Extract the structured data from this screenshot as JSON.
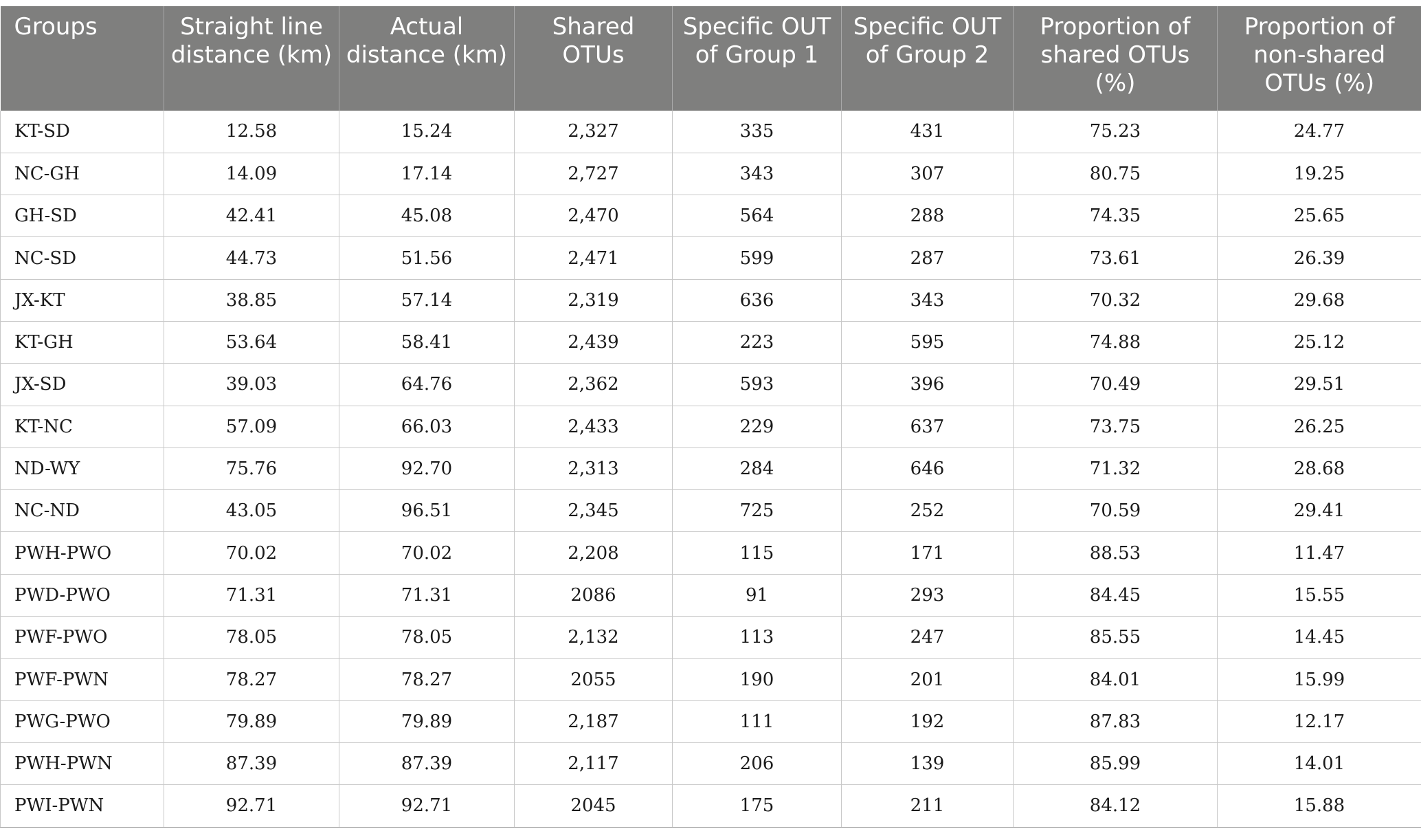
{
  "table": {
    "headers": [
      "Groups",
      "Straight line distance (km)",
      "Actual distance (km)",
      "Shared OTUs",
      "Specific OUT of Group 1",
      "Specific OUT of Group 2",
      "Proportion of shared OTUs (%)",
      "Proportion of non-shared OTUs (%)"
    ],
    "rows": [
      [
        "KT-SD",
        "12.58",
        "15.24",
        "2,327",
        "335",
        "431",
        "75.23",
        "24.77"
      ],
      [
        "NC-GH",
        "14.09",
        "17.14",
        "2,727",
        "343",
        "307",
        "80.75",
        "19.25"
      ],
      [
        "GH-SD",
        "42.41",
        "45.08",
        "2,470",
        "564",
        "288",
        "74.35",
        "25.65"
      ],
      [
        "NC-SD",
        "44.73",
        "51.56",
        "2,471",
        "599",
        "287",
        "73.61",
        "26.39"
      ],
      [
        "JX-KT",
        "38.85",
        "57.14",
        "2,319",
        "636",
        "343",
        "70.32",
        "29.68"
      ],
      [
        "KT-GH",
        "53.64",
        "58.41",
        "2,439",
        "223",
        "595",
        "74.88",
        "25.12"
      ],
      [
        "JX-SD",
        "39.03",
        "64.76",
        "2,362",
        "593",
        "396",
        "70.49",
        "29.51"
      ],
      [
        "KT-NC",
        "57.09",
        "66.03",
        "2,433",
        "229",
        "637",
        "73.75",
        "26.25"
      ],
      [
        "ND-WY",
        "75.76",
        "92.70",
        "2,313",
        "284",
        "646",
        "71.32",
        "28.68"
      ],
      [
        "NC-ND",
        "43.05",
        "96.51",
        "2,345",
        "725",
        "252",
        "70.59",
        "29.41"
      ],
      [
        "PWH-PWO",
        "70.02",
        "70.02",
        "2,208",
        "115",
        "171",
        "88.53",
        "11.47"
      ],
      [
        "PWD-PWO",
        "71.31",
        "71.31",
        "2086",
        "91",
        "293",
        "84.45",
        "15.55"
      ],
      [
        "PWF-PWO",
        "78.05",
        "78.05",
        "2,132",
        "113",
        "247",
        "85.55",
        "14.45"
      ],
      [
        "PWF-PWN",
        "78.27",
        "78.27",
        "2055",
        "190",
        "201",
        "84.01",
        "15.99"
      ],
      [
        "PWG-PWO",
        "79.89",
        "79.89",
        "2,187",
        "111",
        "192",
        "87.83",
        "12.17"
      ],
      [
        "PWH-PWN",
        "87.39",
        "87.39",
        "2,117",
        "206",
        "139",
        "85.99",
        "14.01"
      ],
      [
        "PWI-PWN",
        "92.71",
        "92.71",
        "2045",
        "175",
        "211",
        "84.12",
        "15.88"
      ]
    ]
  }
}
